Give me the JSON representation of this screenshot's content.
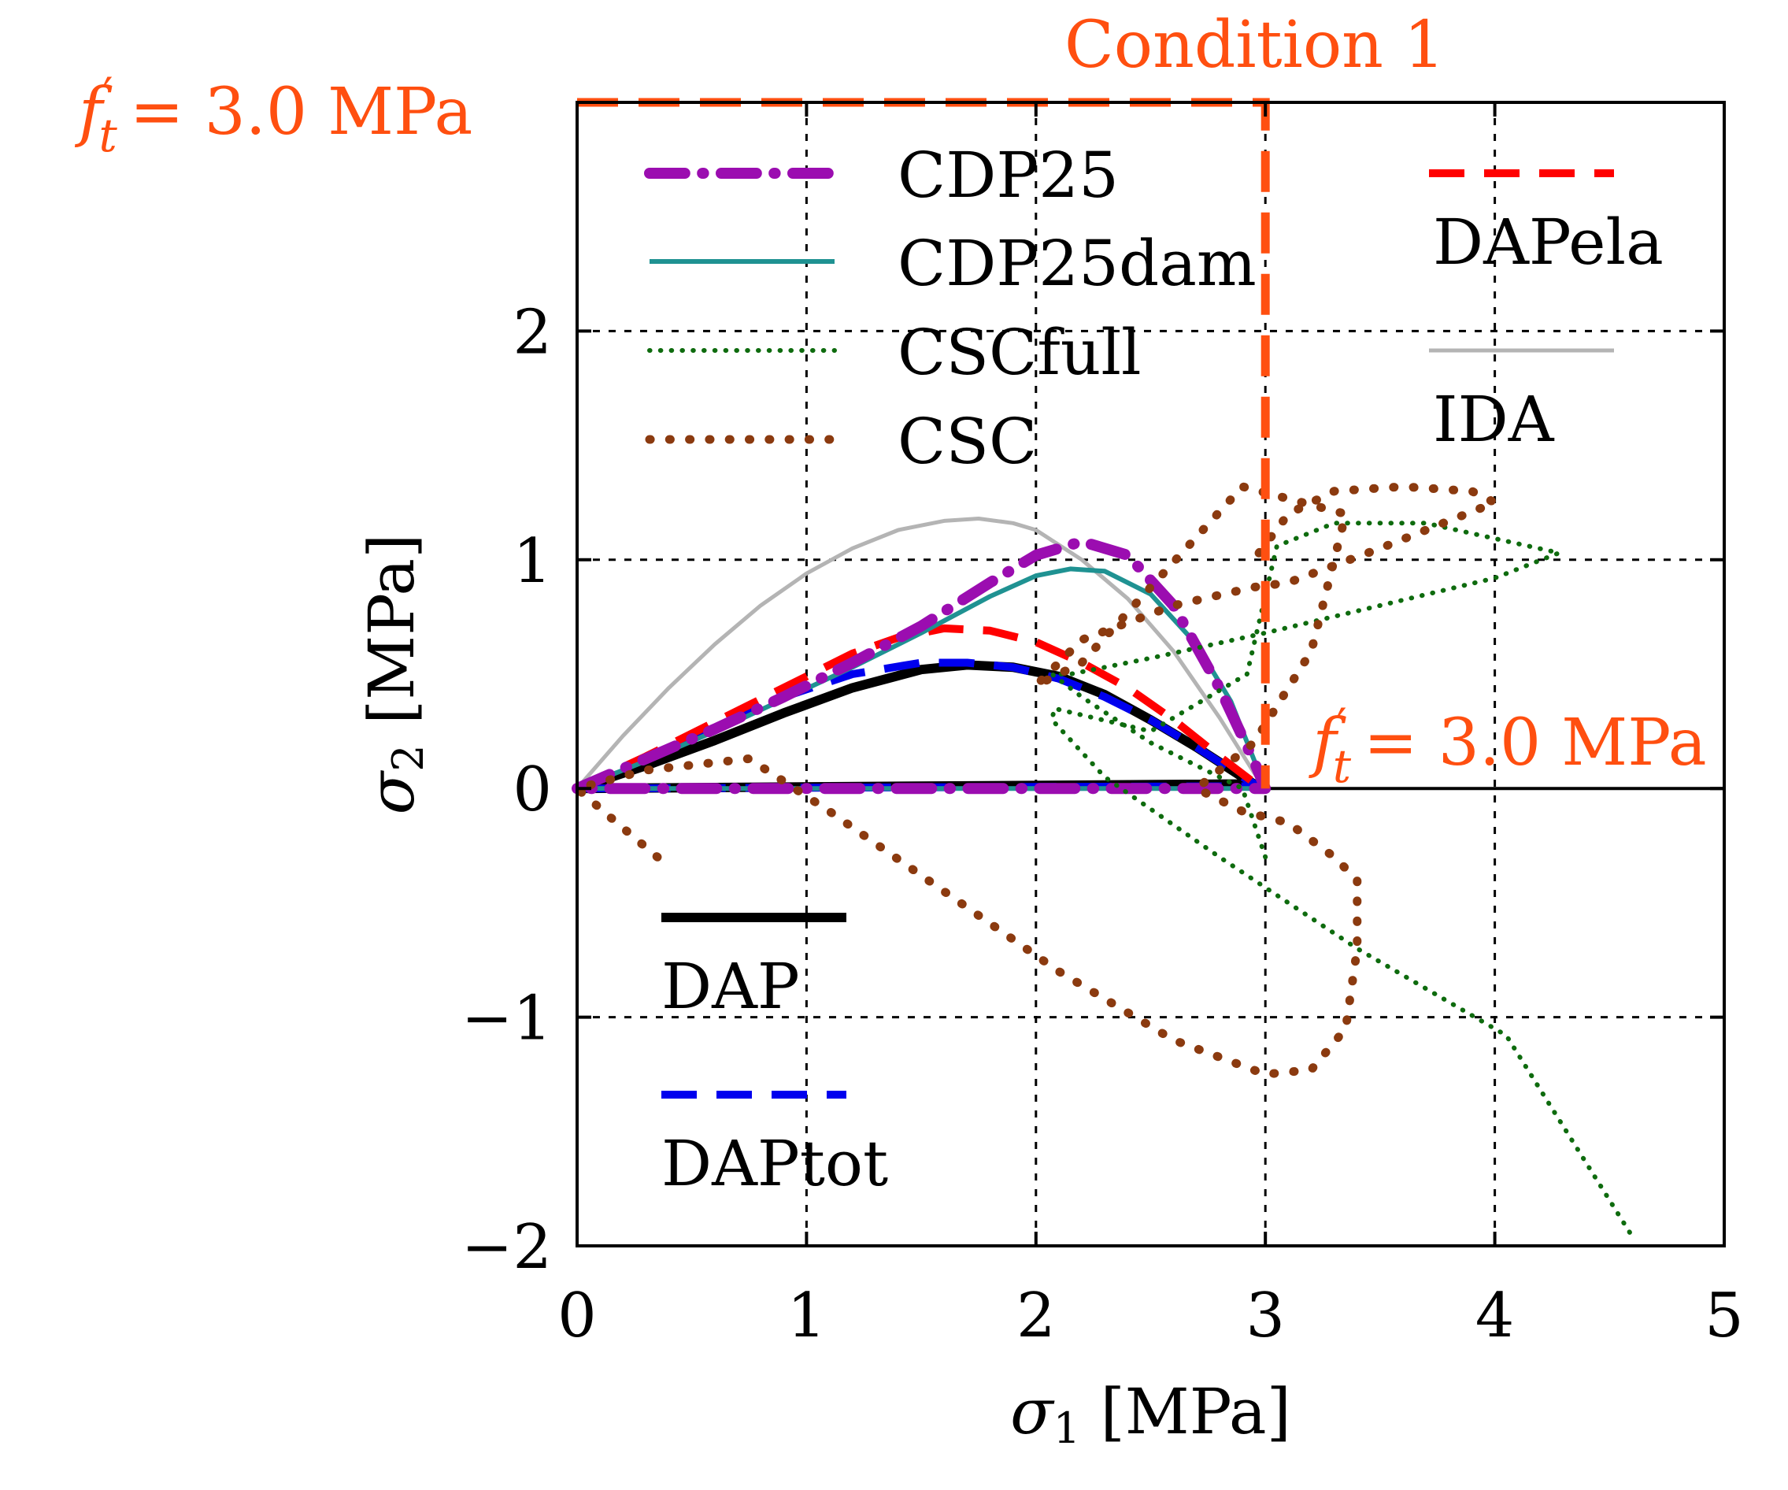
{
  "chart_data": {
    "type": "line",
    "title": "",
    "xlabel_symbol": "σ",
    "xlabel_sub": "1",
    "xlabel_unit": "[MPa]",
    "ylabel_symbol": "σ",
    "ylabel_sub": "2",
    "ylabel_unit": "[MPa]",
    "xlim": [
      0,
      5
    ],
    "ylim": [
      -2,
      3
    ],
    "xticks": [
      0,
      1,
      2,
      3,
      4,
      5
    ],
    "yticks": [
      -2,
      -1,
      0,
      1,
      2
    ],
    "xtick_labels": [
      "0",
      "1",
      "2",
      "3",
      "4",
      "5"
    ],
    "ytick_labels": [
      "−2",
      "−1",
      "0",
      "1",
      "2"
    ],
    "grid": true,
    "annotations": {
      "condition": "Condition 1",
      "ft_symbol": "f",
      "ft_prime": "′",
      "ft_sub": "t",
      "ft_value": "= 3.0 MPa",
      "color": "#ff4f10"
    },
    "condition_box": {
      "x": [
        0,
        3,
        3
      ],
      "y": [
        3,
        3,
        0
      ]
    },
    "ft_marker": {
      "x": 3.0,
      "y": 0
    },
    "series": [
      {
        "name": "IDA",
        "color": "#b4b4b4",
        "style": "solid",
        "width": 5,
        "x": [
          0,
          0.2,
          0.4,
          0.6,
          0.8,
          1.0,
          1.2,
          1.4,
          1.6,
          1.75,
          1.9,
          2.0,
          2.2,
          2.4,
          2.6,
          2.8,
          2.95,
          3.0
        ],
        "y": [
          0,
          0.23,
          0.44,
          0.63,
          0.8,
          0.94,
          1.05,
          1.13,
          1.17,
          1.18,
          1.16,
          1.13,
          1.0,
          0.83,
          0.6,
          0.31,
          0.07,
          0
        ]
      },
      {
        "name": "DAP",
        "color": "#000000",
        "style": "solid",
        "width": 12,
        "x": [
          0,
          0.3,
          0.6,
          0.9,
          1.2,
          1.5,
          1.7,
          1.9,
          2.1,
          2.3,
          2.5,
          2.7,
          2.9,
          2.95,
          0
        ],
        "y": [
          0,
          0.1,
          0.21,
          0.33,
          0.44,
          0.52,
          0.54,
          0.53,
          0.49,
          0.41,
          0.3,
          0.18,
          0.05,
          0.02,
          0
        ]
      },
      {
        "name": "DAPtot",
        "color": "#0000ee",
        "style": "dash",
        "width": 10,
        "x": [
          0,
          0.3,
          0.6,
          0.9,
          1.2,
          1.5,
          1.7,
          1.9,
          2.1,
          2.3,
          2.5,
          2.7,
          2.9,
          2.97,
          0
        ],
        "y": [
          0,
          0.13,
          0.27,
          0.4,
          0.5,
          0.55,
          0.55,
          0.53,
          0.48,
          0.4,
          0.3,
          0.18,
          0.05,
          0.01,
          0
        ]
      },
      {
        "name": "DAPela",
        "color": "#ff0000",
        "style": "dash",
        "width": 10,
        "x": [
          0,
          0.3,
          0.6,
          0.9,
          1.2,
          1.4,
          1.6,
          1.8,
          2.0,
          2.2,
          2.4,
          2.6,
          2.8,
          2.97
        ],
        "y": [
          0,
          0.14,
          0.29,
          0.44,
          0.59,
          0.66,
          0.7,
          0.69,
          0.64,
          0.55,
          0.44,
          0.3,
          0.14,
          0.01
        ]
      },
      {
        "name": "CDP25dam",
        "color": "#1f9292",
        "style": "solid",
        "width": 6,
        "x": [
          0,
          0.3,
          0.6,
          0.9,
          1.2,
          1.5,
          1.8,
          2.0,
          2.15,
          2.3,
          2.5,
          2.7,
          2.85,
          3.0,
          0
        ],
        "y": [
          0,
          0.12,
          0.25,
          0.39,
          0.53,
          0.68,
          0.84,
          0.93,
          0.96,
          0.95,
          0.85,
          0.63,
          0.38,
          0,
          0
        ]
      },
      {
        "name": "CDP25",
        "color": "#9b0db0",
        "style": "dashdot",
        "width": 14,
        "x": [
          0,
          0.3,
          0.6,
          0.9,
          1.2,
          1.5,
          1.8,
          2.0,
          2.2,
          2.4,
          2.6,
          2.8,
          2.95,
          3.0,
          0
        ],
        "y": [
          0,
          0.13,
          0.26,
          0.4,
          0.55,
          0.71,
          0.9,
          1.02,
          1.08,
          1.02,
          0.8,
          0.44,
          0.12,
          0,
          0
        ]
      },
      {
        "name": "CSCfull",
        "color": "#0e6b0e",
        "style": "dot",
        "width": 6,
        "x": [
          3.0,
          2.9,
          2.5,
          2.2,
          2.07,
          2.15,
          2.5,
          3.0,
          3.5,
          4.0,
          4.28,
          3.7,
          3.3,
          3.05,
          2.92,
          2.5,
          2.08,
          2.07,
          2.3,
          2.8,
          3.4,
          4.05,
          4.6
        ],
        "y": [
          -0.3,
          0.0,
          0.2,
          0.4,
          0.5,
          0.5,
          0.57,
          0.68,
          0.8,
          0.92,
          1.03,
          1.16,
          1.16,
          1.06,
          0.5,
          0.25,
          0.35,
          0.3,
          0.05,
          -0.3,
          -0.7,
          -1.08,
          -1.96
        ]
      },
      {
        "name": "CSC",
        "color": "#8b3a0f",
        "style": "dot",
        "width": 11,
        "x": [
          0.35,
          0.15,
          0.0,
          0.3,
          0.75,
          1.1,
          1.6,
          2.1,
          2.6,
          3.0,
          3.2,
          3.35,
          3.4,
          3.4,
          3.3,
          3.1,
          2.9,
          2.7,
          2.95,
          3.2,
          3.35,
          2.9,
          2.2,
          2.0,
          2.2,
          2.6,
          2.95,
          3.1,
          3.5,
          3.8,
          4.0,
          3.9,
          3.6,
          3.3,
          3.1,
          2.95
        ],
        "y": [
          -0.3,
          -0.13,
          0.0,
          0.08,
          0.13,
          -0.1,
          -0.45,
          -0.8,
          -1.1,
          -1.25,
          -1.23,
          -1.05,
          -0.7,
          -0.4,
          -0.3,
          -0.15,
          -0.1,
          0.0,
          0.2,
          0.6,
          1.2,
          1.32,
          0.55,
          0.45,
          0.65,
          0.8,
          0.88,
          0.9,
          1.05,
          1.17,
          1.25,
          1.3,
          1.32,
          1.3,
          1.2,
          1.0
        ]
      }
    ]
  }
}
